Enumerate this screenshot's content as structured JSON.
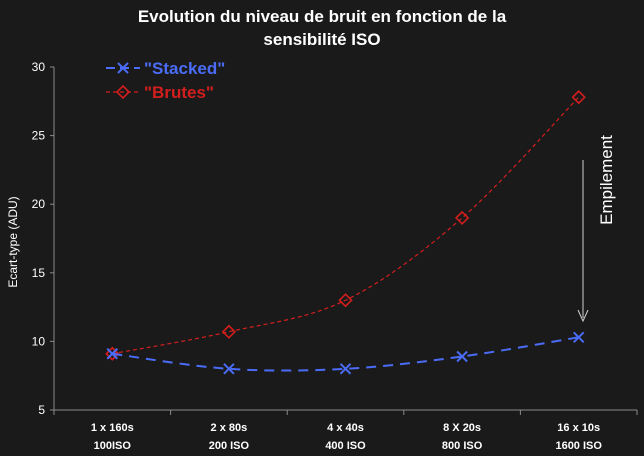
{
  "chart_data": {
    "type": "line",
    "title_lines": [
      "Evolution du niveau de bruit en fonction de la",
      "sensibilité ISO"
    ],
    "ylabel": "Ecart-type (ADU)",
    "ylim": [
      5,
      30
    ],
    "yticks": [
      5,
      10,
      15,
      20,
      25,
      30
    ],
    "categories": [
      [
        "1 x 160s",
        "100ISO"
      ],
      [
        "2 x 80s",
        "200 ISO"
      ],
      [
        "4 x 40s",
        "400 ISO"
      ],
      [
        "8 X 20s",
        "800 ISO"
      ],
      [
        "16 x 10s",
        "1600 ISO"
      ]
    ],
    "series": [
      {
        "name": "\"Stacked\"",
        "values": [
          9.1,
          8.0,
          8.0,
          8.9,
          10.3
        ],
        "color": "#4a6cf7",
        "marker": "x",
        "dash": "10,7"
      },
      {
        "name": "\"Brutes\"",
        "values": [
          9.1,
          10.7,
          13.0,
          19.0,
          27.8
        ],
        "color": "#d41e1e",
        "marker": "diamond",
        "dash": "4,3"
      }
    ],
    "annotation": "Empilement",
    "legend_position": "top-left"
  }
}
